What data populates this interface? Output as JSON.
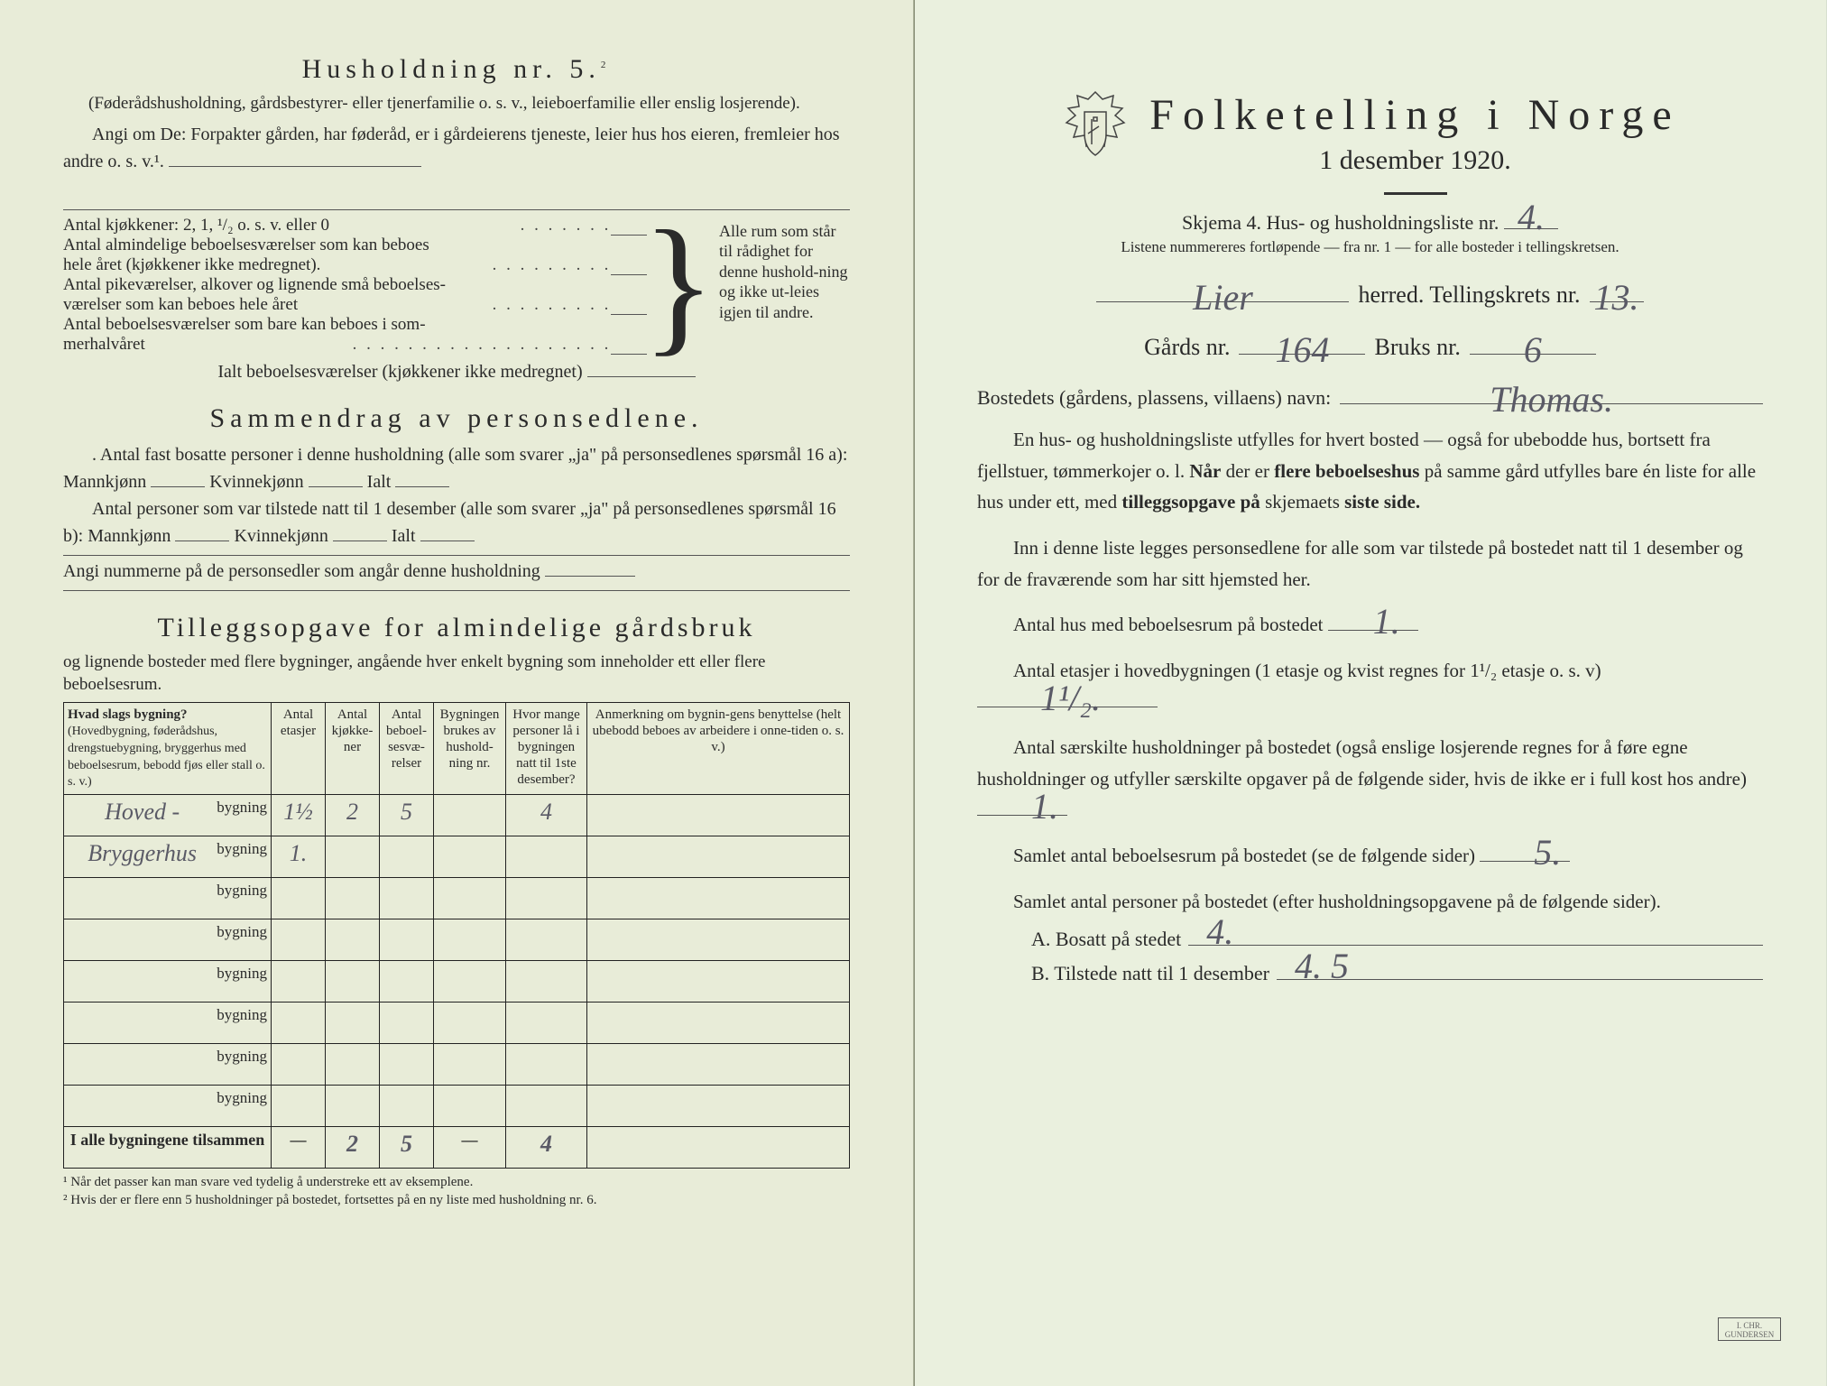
{
  "left": {
    "household_title": "Husholdning nr. 5.",
    "household_title_sup": "2",
    "household_sub": "(Føderådshusholdning, gårdsbestyrer- eller tjenerfamilie o. s. v., leieboerfamilie eller enslig losjerende).",
    "instr1": "Angi om De: Forpakter gården, har føderåd, er i gårdeierens tjeneste, leier hus hos eieren, fremleier hos andre o. s. v.¹.",
    "brace": {
      "l1": "Antal kjøkkener: 2, 1, ¹/₂ o. s. v. eller 0",
      "l2a": "Antal almindelige beboelsesværelser som kan beboes",
      "l2b": "hele året (kjøkkener ikke medregnet).",
      "l3a": "Antal pikeværelser, alkover og lignende små beboelses-",
      "l3b": "værelser som kan beboes hele året",
      "l4a": "Antal beboelsesværelser som bare kan beboes i som-",
      "l4b": "merhalvåret",
      "right": "Alle rum som står til rådighet for denne hushold-ning og ikke ut-leies igjen til andre."
    },
    "ialt_line": "Ialt beboelsesværelser (kjøkkener ikke medregnet)",
    "summary_title": "Sammendrag av personsedlene.",
    "sum_p1": "Antal fast bosatte personer i denne husholdning (alle som svarer „ja\" på personsedlenes spørsmål 16 a): Mannkjønn",
    "kv": "Kvinnekjønn",
    "ialt": "Ialt",
    "sum_p2": "Antal personer som var tilstede natt til 1 desember (alle som svarer „ja\" på personsedlenes spørsmål 16 b): Mannkjønn",
    "sum_p3": "Angi nummerne på de personsedler som angår denne husholdning",
    "tilleg_title": "Tilleggsopgave for almindelige gårdsbruk",
    "tilleg_intro": "og lignende bosteder med flere bygninger, angående hver enkelt bygning som inneholder ett eller flere beboelsesrum.",
    "table": {
      "h1": "Hvad slags bygning?",
      "h1_sub": "(Hovedbygning, føderådshus, drengstuebygning, bryggerhus med beboelsesrum, bebodd fjøs eller stall o. s. v.)",
      "h2": "Antal etasjer",
      "h3": "Antal kjøkke-ner",
      "h4": "Antal beboel-sesvæ-relser",
      "h5": "Bygningen brukes av hushold-ning nr.",
      "h6": "Hvor mange personer lå i bygningen natt til 1ste desember?",
      "h7": "Anmerkning om bygnin-gens benyttelse (helt ubebodd beboes av arbeidere i onne-tiden o. s. v.)",
      "bygning_label": "bygning",
      "rows": [
        {
          "name": "Hoved -",
          "etasjer": "1½",
          "kjokken": "2",
          "beboel": "5",
          "brukes": "",
          "personer": "4",
          "anm": ""
        },
        {
          "name": "Bryggerhus",
          "etasjer": "1.",
          "kjokken": "",
          "beboel": "",
          "brukes": "",
          "personer": "",
          "anm": ""
        },
        {
          "name": "",
          "etasjer": "",
          "kjokken": "",
          "beboel": "",
          "brukes": "",
          "personer": "",
          "anm": ""
        },
        {
          "name": "",
          "etasjer": "",
          "kjokken": "",
          "beboel": "",
          "brukes": "",
          "personer": "",
          "anm": ""
        },
        {
          "name": "",
          "etasjer": "",
          "kjokken": "",
          "beboel": "",
          "brukes": "",
          "personer": "",
          "anm": ""
        },
        {
          "name": "",
          "etasjer": "",
          "kjokken": "",
          "beboel": "",
          "brukes": "",
          "personer": "",
          "anm": ""
        },
        {
          "name": "",
          "etasjer": "",
          "kjokken": "",
          "beboel": "",
          "brukes": "",
          "personer": "",
          "anm": ""
        },
        {
          "name": "",
          "etasjer": "",
          "kjokken": "",
          "beboel": "",
          "brukes": "",
          "personer": "",
          "anm": ""
        }
      ],
      "total_label": "I alle bygningene tilsammen",
      "total": {
        "etasjer": "—",
        "kjokken": "2",
        "beboel": "5",
        "brukes": "—",
        "personer": "4",
        "anm": ""
      }
    },
    "foot1": "¹ Når det passer kan man svare ved tydelig å understreke ett av eksemplene.",
    "foot2": "² Hvis der er flere enn 5 husholdninger på bostedet, fortsettes på en ny liste med husholdning nr. 6."
  },
  "right": {
    "title": "Folketelling i Norge",
    "date": "1 desember 1920.",
    "schema_pre": "Skjema 4.  Hus- og husholdningsliste nr.",
    "schema_val": "4.",
    "listnote": "Listene nummereres fortløpende — fra nr. 1 — for alle bosteder i tellingskretsen.",
    "herred_val": "Lier",
    "herred_label": "herred.  Tellingskrets nr.",
    "krets_val": "13.",
    "gard_pre": "Gårds nr.",
    "gard_val": "164",
    "bruk_pre": "Bruks nr.",
    "bruk_val": "6",
    "bosted_pre": "Bostedets (gårdens, plassens, villaens) navn:",
    "bosted_val": "Thomas.",
    "para1": "En hus- og husholdningsliste utfylles for hvert bosted — også for ubebodde hus, bortsett fra fjellstuer, tømmerkojer o. l.  Når der er flere beboelseshus på samme gård utfylles bare én liste for alle hus under ett, med tilleggsopgave på skjemaets siste side.",
    "para2": "Inn i denne liste legges personsedlene for alle som var tilstede på bostedet natt til 1 desember og for de fraværende som har sitt hjemsted her.",
    "q1_pre": "Antal hus med beboelsesrum på bostedet",
    "q1_val": "1.",
    "q2_pre": "Antal etasjer i hovedbygningen (1 etasje og kvist regnes for 1¹/₂ etasje o. s. v)",
    "q2_val": "1¹/₂.",
    "q3_pre": "Antal særskilte husholdninger på bostedet (også enslige losjerende regnes for å føre egne husholdninger og utfyller særskilte opgaver på de følgende sider, hvis de ikke er i full kost hos andre)",
    "q3_val": "1.",
    "q4_pre": "Samlet antal beboelsesrum på bostedet (se de følgende sider)",
    "q4_val": "5.",
    "q5_pre": "Samlet antal personer på bostedet (efter husholdningsopgavene på de følgende sider).",
    "qa_pre": "A.  Bosatt på stedet",
    "qa_val": "4.",
    "qb_pre": "B.  Tilstede natt til 1 desember",
    "qb_val": "4. 5",
    "printer": "I. CHR. GUNDERSEN"
  },
  "colors": {
    "paper_left": "#e8ecd8",
    "paper_right": "#eaf0de",
    "text": "#2a2a2a",
    "handwriting": "#5a5a66"
  }
}
